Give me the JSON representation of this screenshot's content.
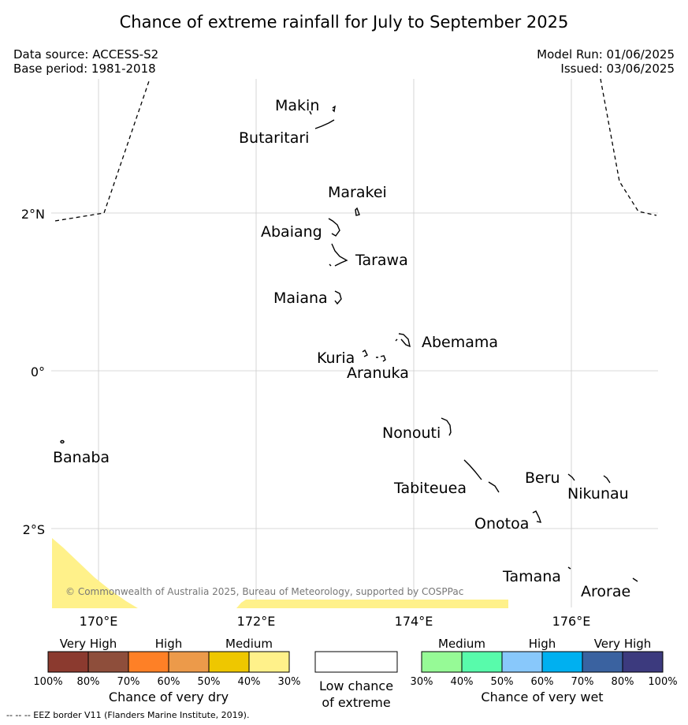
{
  "title": "Chance of extreme rainfall for July to September 2025",
  "meta": {
    "data_source": "Data source: ACCESS-S2",
    "base_period": "Base period: 1981-2018",
    "model_run": "Model Run: 01/06/2025",
    "issued": "Issued: 03/06/2025"
  },
  "axes": {
    "lon_ticks": [
      "170°E",
      "172°E",
      "174°E",
      "176°E"
    ],
    "lat_ticks": [
      "2°N",
      "0°",
      "2°S"
    ]
  },
  "islands": [
    "Makin",
    "Butaritari",
    "Marakei",
    "Abaiang",
    "Tarawa",
    "Maiana",
    "Abemama",
    "Kuria",
    "Aranuka",
    "Banaba",
    "Nonouti",
    "Tabiteuea",
    "Beru",
    "Nikunau",
    "Onotoa",
    "Tamana",
    "Arorae"
  ],
  "copyright": "© Commonwealth of Australia 2025, Bureau of Meteorology, supported by COSPPac",
  "legend": {
    "dry": {
      "categories": [
        "Very High",
        "High",
        "Medium"
      ],
      "colors": [
        "#8b3a2f",
        "#8e4e3b",
        "#fe8026",
        "#ec9a4a",
        "#eec700",
        "#fff18a"
      ],
      "percents": [
        "100%",
        "80%",
        "70%",
        "60%",
        "50%",
        "40%",
        "30%"
      ],
      "title": "Chance of very dry"
    },
    "low": {
      "line1": "Low chance",
      "line2": "of extreme"
    },
    "wet": {
      "categories": [
        "Medium",
        "High",
        "Very High"
      ],
      "colors": [
        "#96fa96",
        "#58fbab",
        "#88c8fb",
        "#00b0f0",
        "#3a62a0",
        "#3c3a7e"
      ],
      "percents": [
        "30%",
        "40%",
        "50%",
        "60%",
        "70%",
        "80%",
        "100%"
      ],
      "title": "Chance of very wet"
    }
  },
  "footnote": "--  --  -- EEZ border V11 (Flanders Marine Institute, 2019).",
  "colors": {
    "dry_shading": "#fff18a",
    "gridline": "#cccccc"
  }
}
